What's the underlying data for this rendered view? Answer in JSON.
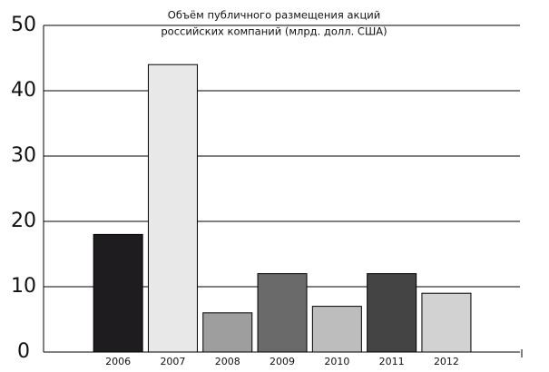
{
  "chart_data": {
    "type": "bar",
    "title": [
      "Объём публичного размещения акций",
      "российских компаний (млрд. долл. США)"
    ],
    "categories": [
      "2006",
      "2007",
      "2008",
      "2009",
      "2010",
      "2011",
      "2012"
    ],
    "values": [
      18,
      44,
      6,
      12,
      7,
      12,
      9
    ],
    "colors": [
      "#1e1c1e",
      "#e8e8e8",
      "#9e9e9e",
      "#6a6a6a",
      "#bdbdbd",
      "#444444",
      "#d2d2d2"
    ],
    "ylim": [
      0,
      50
    ],
    "yticks": [
      0,
      10,
      20,
      30,
      40,
      50
    ],
    "grid": true
  }
}
